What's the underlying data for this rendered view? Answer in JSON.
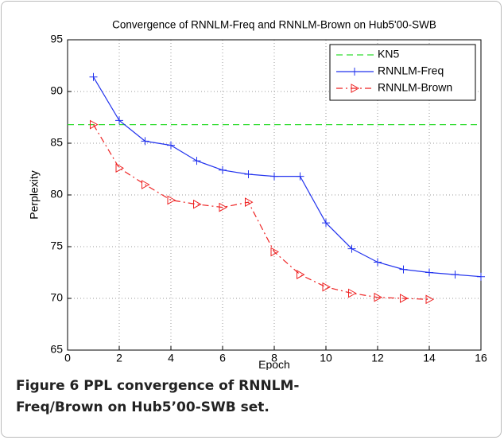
{
  "chart_data": {
    "type": "line",
    "title": "Convergence of RNNLM-Freq and RNNLM-Brown on Hub5'00-SWB",
    "x_label": "Epoch",
    "y_label": "Perplexity",
    "xlim": [
      0,
      16
    ],
    "ylim": [
      65,
      95
    ],
    "xticks": [
      0,
      2,
      4,
      6,
      8,
      10,
      12,
      14,
      16
    ],
    "yticks": [
      65,
      70,
      75,
      80,
      85,
      90,
      95
    ],
    "grid": true,
    "legend": "upper right",
    "series": [
      {
        "name": "KN5",
        "color": "#33dd33",
        "dash": "dashed",
        "marker": "none",
        "x": [
          0,
          16
        ],
        "values": [
          86.8,
          86.8
        ]
      },
      {
        "name": "RNNLM-Freq",
        "color": "#2233ee",
        "dash": "solid",
        "marker": "plus",
        "x": [
          1,
          2,
          3,
          4,
          5,
          6,
          7,
          8,
          9,
          10,
          11,
          12,
          13,
          14,
          15,
          16
        ],
        "values": [
          91.4,
          87.2,
          85.2,
          84.8,
          83.3,
          82.4,
          82.0,
          81.8,
          81.8,
          77.3,
          74.8,
          73.5,
          72.8,
          72.5,
          72.3,
          72.1
        ]
      },
      {
        "name": "RNNLM-Brown",
        "color": "#ee2222",
        "dash": "dashdot",
        "marker": "triangle-right",
        "x": [
          1,
          2,
          3,
          4,
          5,
          6,
          7,
          8,
          9,
          10,
          11,
          12,
          13,
          14
        ],
        "values": [
          86.8,
          82.6,
          81.0,
          79.5,
          79.1,
          78.8,
          79.3,
          74.5,
          72.3,
          71.1,
          70.5,
          70.1,
          70.0,
          69.9
        ]
      }
    ]
  },
  "caption": {
    "label": "Figure 6",
    "text": "PPL convergence of RNNLM-Freq/Brown on Hub5’00-SWB set."
  }
}
